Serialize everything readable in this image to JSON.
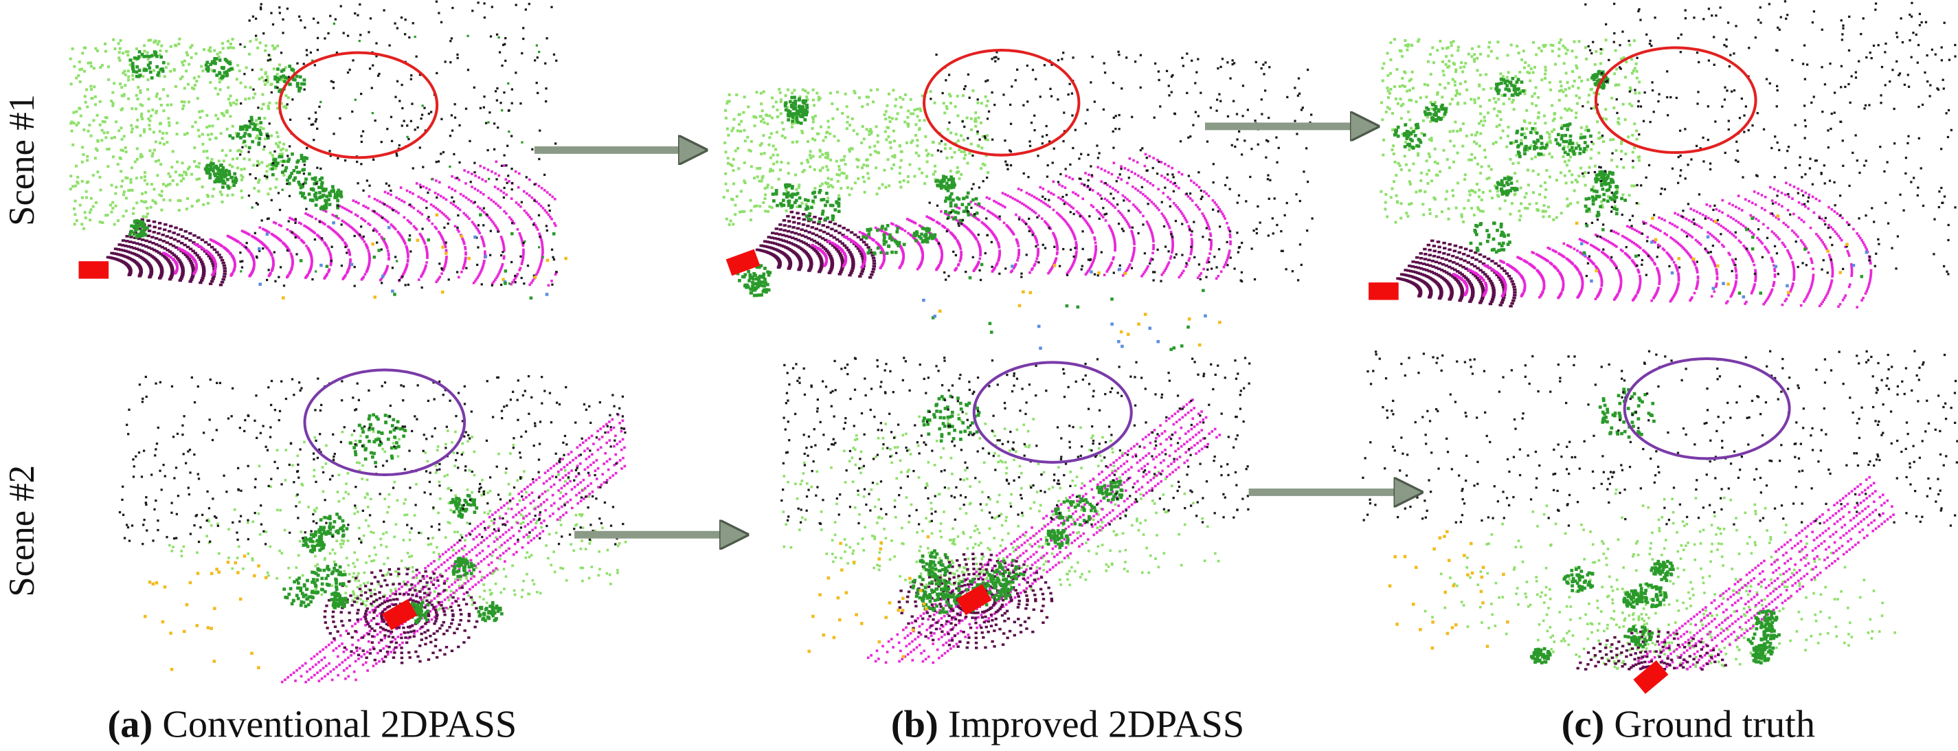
{
  "figure": {
    "rows": [
      "Scene #1",
      "Scene #2"
    ],
    "captions": [
      {
        "label": "(a)",
        "text": "Conventional 2DPASS"
      },
      {
        "label": "(b)",
        "text": "Improved 2DPASS"
      },
      {
        "label": "(c)",
        "text": "Ground truth"
      }
    ]
  }
}
